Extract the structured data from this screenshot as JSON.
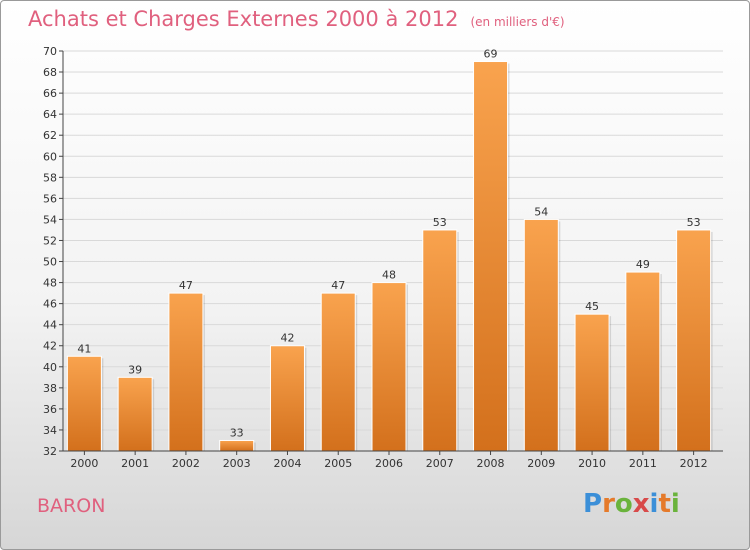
{
  "title": "Achats et Charges Externes 2000 à 2012",
  "unit_note": "(en milliers d'€)",
  "place": "BARON",
  "logo": {
    "text": "Proxiti",
    "colors": [
      "#3b8fd8",
      "#e57a2a",
      "#6ab33c",
      "#d84a4a",
      "#3b8fd8",
      "#e57a2a",
      "#6ab33c"
    ]
  },
  "colors": {
    "bar_top": "#f9a34e",
    "bar_bottom": "#d3701c",
    "title": "#e0607e"
  },
  "chart_data": {
    "type": "bar",
    "title": "Achats et Charges Externes 2000 à 2012",
    "subtitle": "(en milliers d'€)",
    "categories": [
      "2000",
      "2001",
      "2002",
      "2003",
      "2004",
      "2005",
      "2006",
      "2007",
      "2008",
      "2009",
      "2010",
      "2011",
      "2012"
    ],
    "values": [
      41,
      39,
      47,
      33,
      42,
      47,
      48,
      53,
      69,
      54,
      45,
      49,
      53
    ],
    "ylim": [
      32,
      70
    ],
    "yticks": [
      32,
      34,
      36,
      38,
      40,
      42,
      44,
      46,
      48,
      50,
      52,
      54,
      56,
      58,
      60,
      62,
      64,
      66,
      68,
      70
    ],
    "grid": true,
    "legend": "none",
    "data_labels": true
  }
}
